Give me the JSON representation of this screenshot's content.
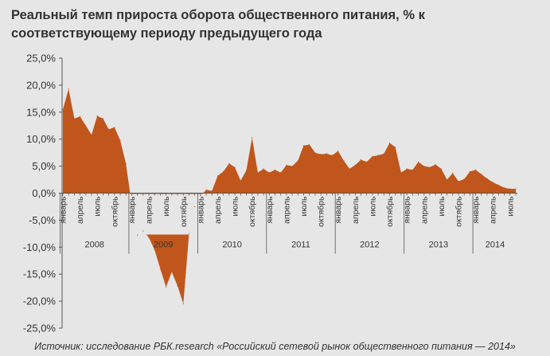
{
  "colors": {
    "area": "#c0561b",
    "background": "#e6e6e6",
    "axis": "#555555",
    "text": "#333333"
  },
  "chart_data": {
    "type": "area",
    "title": "Реальный темп прироста оборота общественного питания, % к соответствующему периоду предыдущего года",
    "source": "Источник: исследование РБК.research «Российский сетевой рынок общественного питания — 2014»",
    "xlabel": "",
    "ylabel": "",
    "ylim": [
      -25,
      25
    ],
    "y_ticks": [
      25,
      20,
      15,
      10,
      5,
      0,
      -5,
      -10,
      -15,
      -20,
      -25
    ],
    "y_tick_labels": [
      "25,0%",
      "20,0%",
      "15,0%",
      "10,0%",
      "5,0%",
      "0,0%",
      "-5,0%",
      "-10,0%",
      "-15,0%",
      "-20,0%",
      "-25,0%"
    ],
    "grid": false,
    "month_labels": [
      "январь",
      "апрель",
      "июль",
      "октябрь"
    ],
    "years": [
      {
        "label": "2008",
        "months": 12
      },
      {
        "label": "2009",
        "months": 12
      },
      {
        "label": "2010",
        "months": 12
      },
      {
        "label": "2011",
        "months": 12
      },
      {
        "label": "2012",
        "months": 12
      },
      {
        "label": "2013",
        "months": 12
      },
      {
        "label": "2014",
        "months": 8
      }
    ],
    "series": [
      {
        "values": [
          15.5,
          19.3,
          13.8,
          14.2,
          12.5,
          10.8,
          14.3,
          13.8,
          11.8,
          12.2,
          9.8,
          5.5,
          -2.0,
          -7.8,
          -7.0,
          -8.2,
          -10.5,
          -14.0,
          -17.4,
          -14.6,
          -17.2,
          -20.5,
          -7.5,
          -2.5,
          -0.5,
          0.6,
          0.4,
          3.2,
          4.0,
          5.5,
          4.8,
          2.3,
          4.2,
          10.3,
          3.8,
          4.5,
          3.8,
          4.3,
          3.8,
          5.2,
          5.0,
          6.0,
          8.8,
          9.0,
          7.5,
          7.2,
          7.3,
          7.0,
          7.8,
          6.0,
          4.5,
          5.2,
          6.2,
          5.8,
          6.8,
          7.0,
          7.3,
          9.3,
          8.5,
          3.8,
          4.5,
          4.3,
          5.8,
          5.0,
          4.8,
          5.3,
          4.5,
          2.5,
          3.7,
          2.2,
          2.6,
          4.0,
          4.3,
          3.5,
          2.7,
          2.0,
          1.5,
          1.0,
          0.8,
          0.8
        ]
      }
    ]
  }
}
